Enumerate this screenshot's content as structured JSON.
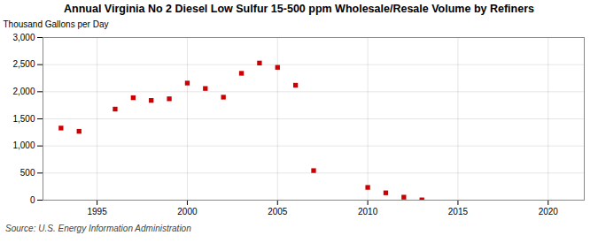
{
  "chart_data": {
    "type": "scatter",
    "title": "Annual Virginia No 2 Diesel Low Sulfur 15-500 ppm Wholesale/Resale Volume by Refiners",
    "ylabel": "Thousand Gallons per Day",
    "caption": "Source: U.S. Energy Information Administration",
    "x": [
      1993,
      1994,
      1996,
      1997,
      1998,
      1999,
      2000,
      2001,
      2002,
      2003,
      2004,
      2005,
      2006,
      2007,
      2010,
      2011,
      2012,
      2013
    ],
    "values": [
      1330,
      1270,
      1680,
      1890,
      1840,
      1870,
      2160,
      2060,
      1900,
      2340,
      2530,
      2450,
      2120,
      545,
      235,
      135,
      55,
      5
    ],
    "color": "#cc0000",
    "marker": "square",
    "xlim": [
      1992,
      2022
    ],
    "xticks": [
      1995,
      2000,
      2005,
      2010,
      2015,
      2020
    ],
    "ylim": [
      0,
      3000
    ],
    "yticks": [
      0,
      500,
      {
        "value": 1000,
        "label": "1,000"
      },
      {
        "value": 1500,
        "label": "1,500"
      },
      {
        "value": 2000,
        "label": "2,000"
      },
      {
        "value": 2500,
        "label": "2,500"
      },
      {
        "value": 3000,
        "label": "3,000"
      }
    ],
    "grid": true
  }
}
